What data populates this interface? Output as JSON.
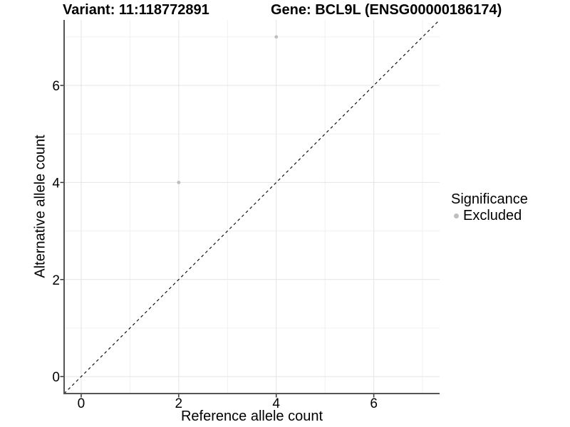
{
  "titles": {
    "variant": "Variant: 11:118772891",
    "gene": "Gene: BCL9L (ENSG00000186174)"
  },
  "chart_data": {
    "type": "scatter",
    "title": "Variant: 11:118772891    Gene: BCL9L (ENSG00000186174)",
    "xlabel": "Reference allele count",
    "ylabel": "Alternative allele count",
    "xlim": [
      -0.35,
      7.35
    ],
    "ylim": [
      -0.35,
      7.35
    ],
    "x_ticks": [
      0,
      2,
      4,
      6
    ],
    "y_ticks": [
      0,
      2,
      4,
      6
    ],
    "x_minor_gridlines": [
      1,
      3,
      5,
      7
    ],
    "y_minor_gridlines": [
      1,
      3,
      5,
      7
    ],
    "grid": true,
    "points": [
      {
        "x": 2,
        "y": 4,
        "series": "Excluded"
      },
      {
        "x": 4,
        "y": 7,
        "series": "Excluded"
      }
    ],
    "reference_line": {
      "slope": 1,
      "intercept": 0,
      "style": "dashed",
      "color": "#111111"
    },
    "legend": {
      "position": "right",
      "title": "Significance",
      "entries": [
        {
          "label": "Excluded",
          "color": "#bebebe"
        }
      ]
    },
    "colors": {
      "point": "#bebebe",
      "grid_major": "#e4e4e4",
      "grid_minor": "#f0f0f0",
      "axis_line": "#555555",
      "tick": "#333333",
      "text": "#000000",
      "background": "#ffffff"
    }
  }
}
